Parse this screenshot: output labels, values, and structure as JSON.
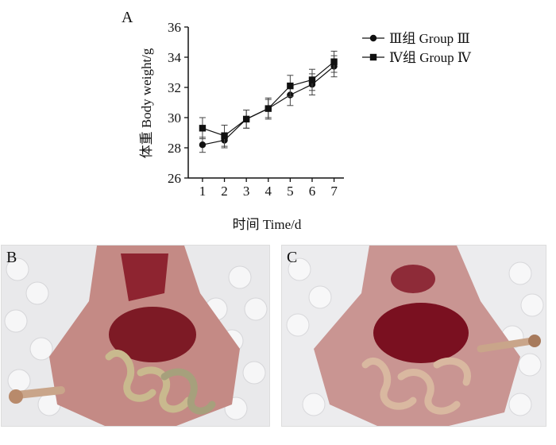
{
  "panel_labels": {
    "a": "A",
    "b": "B",
    "c": "C"
  },
  "chart_data": {
    "type": "line",
    "xlabel": "时间 Time/d",
    "ylabel": "体重 Body weight/g",
    "x": [
      1,
      2,
      3,
      4,
      5,
      6,
      7
    ],
    "xticks": [
      "1",
      "2",
      "3",
      "4",
      "5",
      "6",
      "7"
    ],
    "yticks": [
      "26",
      "28",
      "30",
      "32",
      "34",
      "36"
    ],
    "ylim": [
      26,
      36
    ],
    "grid": false,
    "legend_position": "top-right",
    "series": [
      {
        "name": "Ⅲ组  Group Ⅲ",
        "marker": "circle",
        "color": "#111111",
        "values": [
          28.2,
          28.5,
          29.9,
          30.6,
          31.5,
          32.2,
          33.4
        ],
        "errors": [
          0.5,
          0.5,
          0.6,
          0.6,
          0.7,
          0.7,
          0.7
        ]
      },
      {
        "name": "Ⅳ组  Group Ⅳ",
        "marker": "square",
        "color": "#111111",
        "values": [
          29.3,
          28.8,
          29.9,
          30.6,
          32.1,
          32.5,
          33.7
        ],
        "errors": [
          0.7,
          0.7,
          0.6,
          0.7,
          0.7,
          0.7,
          0.7
        ]
      }
    ]
  },
  "photos": [
    {
      "label_key": "b",
      "description": "dissected-abdomen-group-III",
      "tissue_color": "#8a1f2a"
    },
    {
      "label_key": "c",
      "description": "dissected-abdomen-group-IV",
      "tissue_color": "#7a1020"
    }
  ]
}
